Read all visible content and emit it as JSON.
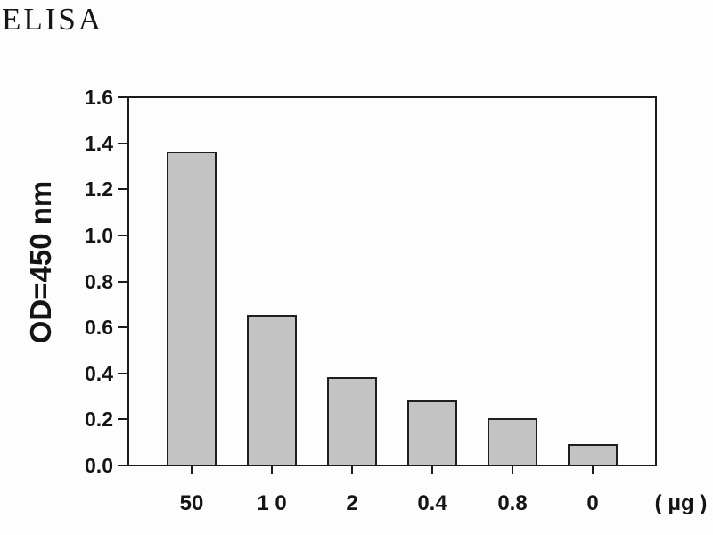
{
  "header": {
    "title": "ELISA"
  },
  "chart_data": {
    "type": "bar",
    "title": "ELISA",
    "categories": [
      "50",
      "1 0",
      "2",
      "0.4",
      "0.8",
      "0"
    ],
    "values": [
      1.36,
      0.65,
      0.38,
      0.28,
      0.2,
      0.09
    ],
    "xlabel": "( μg )",
    "ylabel": "OD=450 nm",
    "ylim": [
      0,
      1.6
    ],
    "ytick_labels": [
      "0.0",
      "0.2",
      "0.4",
      "0.6",
      "0.8",
      "1.0",
      "1.2",
      "1.4",
      "1.6"
    ],
    "grid": false,
    "legend": "none",
    "colors": {
      "bar_fill": "#c3c3c3",
      "bar_border": "#1e1e1e",
      "axis": "#1c1c1c",
      "text": "#141414",
      "background": "#fdfdfd"
    }
  }
}
